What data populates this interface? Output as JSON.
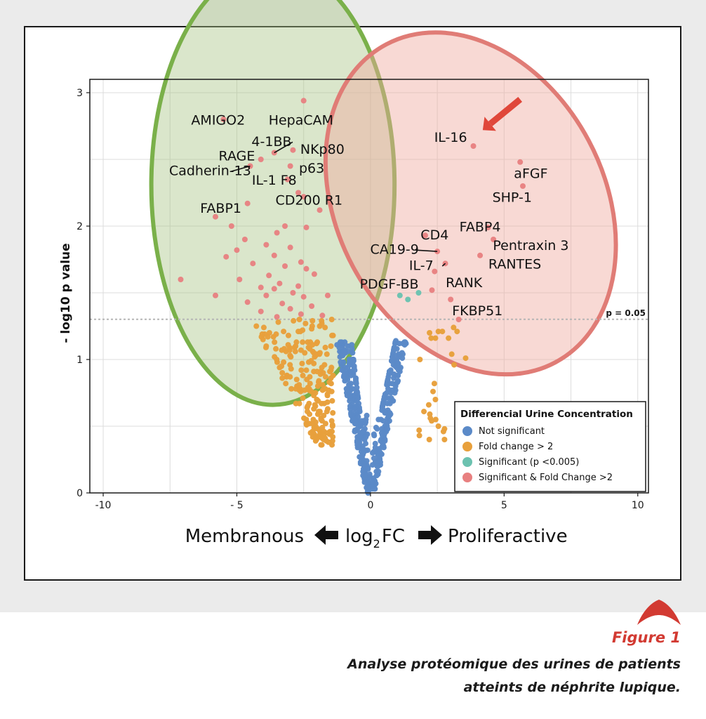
{
  "chart_data": {
    "type": "scatter",
    "xlabel": {
      "left": "Membranous",
      "center": "log",
      "center_sub": "2",
      "center_tail": "FC",
      "right": "Proliferactive"
    },
    "ylabel": "- log10 p value",
    "xlim": [
      -10.5,
      10.4
    ],
    "ylim": [
      0,
      3.1
    ],
    "x_ticks": [
      -10,
      -5,
      0,
      5,
      10
    ],
    "x_tick_labels": [
      "-10",
      "- 5",
      "0",
      "5",
      "10"
    ],
    "y_ticks": [
      0,
      1,
      2,
      3
    ],
    "y_tick_labels": [
      "0",
      "1",
      "2",
      "3"
    ],
    "grid": true,
    "threshold": {
      "y": 1.301,
      "label": "p = 0.05"
    },
    "legend": {
      "title": "Differencial Urine Concentration",
      "placement": "bottom-right",
      "entries": [
        {
          "label": "Not significant",
          "color": "#5b8ac8"
        },
        {
          "label": "Fold change > 2",
          "color": "#e8a03c"
        },
        {
          "label": "Significant (p <0.005)",
          "color": "#6cc2b0"
        },
        {
          "label": "Significant & Fold Change >2",
          "color": "#e88080"
        }
      ]
    },
    "regions": [
      {
        "cx": -3.65,
        "cy": 2.31,
        "rx": 4.55,
        "ry": 1.65,
        "rotation": 0,
        "fill": "rgba(168,195,130,0.42)",
        "stroke": "#7ab04a"
      },
      {
        "cx": 3.75,
        "cy": 2.17,
        "rx": 5.0,
        "ry": 1.35,
        "rotation": -28,
        "fill": "rgba(240,170,160,0.45)",
        "stroke": "#e07c76"
      }
    ],
    "arrow": {
      "from": [
        5.6,
        2.95
      ],
      "to": [
        4.2,
        2.72
      ],
      "color": "#e0473a"
    },
    "annotations": [
      {
        "text": "AMIGO2",
        "x": -5.7,
        "y": 2.79,
        "point": [
          -5.5,
          2.8
        ]
      },
      {
        "text": "HepaCAM",
        "x": -2.6,
        "y": 2.79,
        "point": [
          -2.5,
          2.94
        ]
      },
      {
        "text": "4-1BB",
        "x": -3.7,
        "y": 2.63,
        "point": [
          -3.6,
          2.55
        ],
        "leader": true
      },
      {
        "text": "NKp80",
        "x": -1.8,
        "y": 2.57,
        "point": [
          -2.9,
          2.57
        ]
      },
      {
        "text": "RAGE",
        "x": -5.0,
        "y": 2.52,
        "point": [
          -4.1,
          2.5
        ]
      },
      {
        "text": "p63",
        "x": -2.2,
        "y": 2.43,
        "point": [
          -3.0,
          2.45
        ]
      },
      {
        "text": "Cadherin-13",
        "x": -6.0,
        "y": 2.41,
        "point": [
          -4.5,
          2.45
        ],
        "leader": true
      },
      {
        "text": "IL-1 F8",
        "x": -3.6,
        "y": 2.34,
        "point": [
          -3.1,
          2.35
        ]
      },
      {
        "text": "FABP1",
        "x": -5.6,
        "y": 2.13,
        "point": [
          -4.6,
          2.17
        ]
      },
      {
        "text": "CD200 R1",
        "x": -2.3,
        "y": 2.19,
        "point": [
          -2.7,
          2.25
        ]
      },
      {
        "text": "IL-16",
        "x": 3.0,
        "y": 2.66,
        "point": [
          3.85,
          2.6
        ]
      },
      {
        "text": "aFGF",
        "x": 6.0,
        "y": 2.39,
        "point": [
          5.6,
          2.48
        ]
      },
      {
        "text": "SHP-1",
        "x": 5.3,
        "y": 2.21,
        "point": [
          5.7,
          2.3
        ]
      },
      {
        "text": "FABP4",
        "x": 4.1,
        "y": 1.99,
        "point": [
          4.4,
          1.99
        ]
      },
      {
        "text": "CD4",
        "x": 2.4,
        "y": 1.93,
        "point": [
          2.05,
          1.93
        ]
      },
      {
        "text": "Pentraxin 3",
        "x": 6.0,
        "y": 1.85,
        "point": [
          4.6,
          1.9
        ]
      },
      {
        "text": "CA19-9",
        "x": 0.9,
        "y": 1.82,
        "point": [
          2.5,
          1.81
        ],
        "leader": true
      },
      {
        "text": "RANTES",
        "x": 5.4,
        "y": 1.71,
        "point": [
          4.1,
          1.78
        ]
      },
      {
        "text": "IL-7",
        "x": 1.9,
        "y": 1.7,
        "point": [
          2.8,
          1.72
        ],
        "leader": true
      },
      {
        "text": "RANK",
        "x": 3.5,
        "y": 1.57,
        "point": [
          2.4,
          1.66
        ]
      },
      {
        "text": "PDGF-BB",
        "x": 0.7,
        "y": 1.56,
        "point": [
          1.2,
          1.47
        ]
      },
      {
        "text": "FKBP51",
        "x": 4.0,
        "y": 1.36,
        "point": [
          3.3,
          1.3
        ]
      }
    ],
    "series": [
      {
        "name": "Not significant",
        "color": "#5b8ac8",
        "points": []
      },
      {
        "name": "Fold change > 2",
        "color": "#e8a03c",
        "points": []
      },
      {
        "name": "Significant (p <0.005)",
        "color": "#6cc2b0",
        "points": [
          [
            1.1,
            1.48
          ],
          [
            1.4,
            1.45
          ],
          [
            1.8,
            1.5
          ]
        ]
      },
      {
        "name": "Significant & Fold Change >2",
        "color": "#e88080",
        "points": [
          [
            -5.5,
            2.8
          ],
          [
            -2.5,
            2.94
          ],
          [
            -3.6,
            2.55
          ],
          [
            -2.9,
            2.57
          ],
          [
            -4.1,
            2.5
          ],
          [
            -3.0,
            2.45
          ],
          [
            -4.5,
            2.45
          ],
          [
            -3.1,
            2.35
          ],
          [
            -4.6,
            2.17
          ],
          [
            -2.7,
            2.25
          ],
          [
            -2.5,
            2.22
          ],
          [
            -1.9,
            2.12
          ],
          [
            -5.8,
            2.07
          ],
          [
            -5.2,
            2.0
          ],
          [
            -3.2,
            2.0
          ],
          [
            -2.4,
            1.99
          ],
          [
            -3.5,
            1.95
          ],
          [
            -4.7,
            1.9
          ],
          [
            -3.9,
            1.86
          ],
          [
            -5.0,
            1.82
          ],
          [
            -3.0,
            1.84
          ],
          [
            -3.6,
            1.78
          ],
          [
            -2.6,
            1.73
          ],
          [
            -5.4,
            1.77
          ],
          [
            -4.4,
            1.72
          ],
          [
            -3.2,
            1.7
          ],
          [
            -2.4,
            1.68
          ],
          [
            -3.8,
            1.63
          ],
          [
            -2.1,
            1.64
          ],
          [
            -4.9,
            1.6
          ],
          [
            -7.1,
            1.6
          ],
          [
            -3.4,
            1.57
          ],
          [
            -2.7,
            1.55
          ],
          [
            -4.1,
            1.54
          ],
          [
            -3.6,
            1.53
          ],
          [
            -2.9,
            1.5
          ],
          [
            -5.8,
            1.48
          ],
          [
            -3.9,
            1.48
          ],
          [
            -2.5,
            1.47
          ],
          [
            -1.6,
            1.48
          ],
          [
            -4.6,
            1.43
          ],
          [
            -3.3,
            1.42
          ],
          [
            -2.2,
            1.4
          ],
          [
            -3.0,
            1.38
          ],
          [
            -4.1,
            1.36
          ],
          [
            -2.6,
            1.34
          ],
          [
            -1.8,
            1.33
          ],
          [
            -3.5,
            1.32
          ],
          [
            3.85,
            2.6
          ],
          [
            5.6,
            2.48
          ],
          [
            5.7,
            2.3
          ],
          [
            4.4,
            1.99
          ],
          [
            2.05,
            1.93
          ],
          [
            4.6,
            1.9
          ],
          [
            2.5,
            1.81
          ],
          [
            4.1,
            1.78
          ],
          [
            2.8,
            1.72
          ],
          [
            2.4,
            1.66
          ],
          [
            2.3,
            1.52
          ],
          [
            3.0,
            1.45
          ],
          [
            3.3,
            1.3
          ]
        ]
      }
    ]
  },
  "caption": {
    "figure_label": "Figure 1",
    "line1": "Analyse protéomique des urines de patients",
    "line2": "atteints de néphrite lupique."
  }
}
